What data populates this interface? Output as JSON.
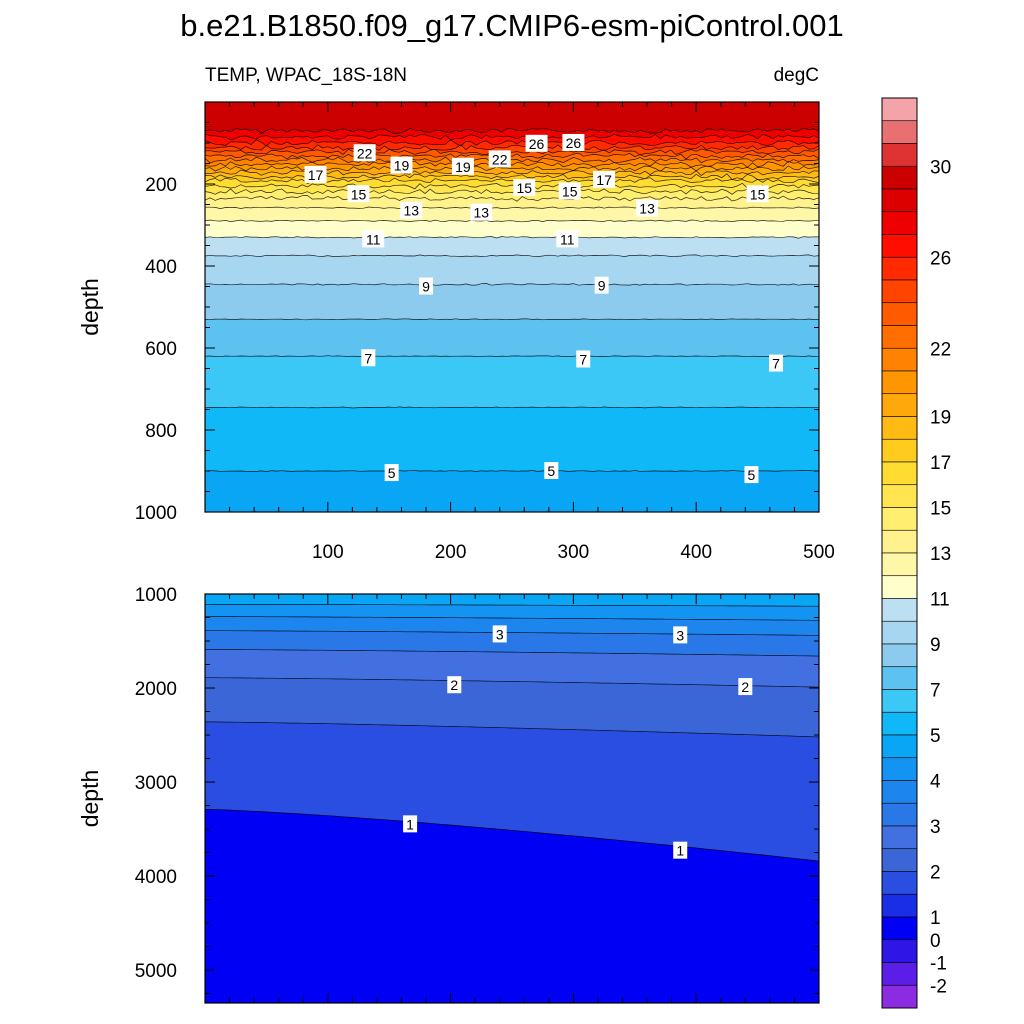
{
  "title": "b.e21.B1850.f09_g17.CMIP6-esm-piControl.001",
  "left_string": "TEMP, WPAC_18S-18N",
  "right_string": "degC",
  "colorbar": {
    "levels": [
      -2,
      -1,
      0,
      1,
      1.5,
      2,
      2.5,
      3,
      3.5,
      4,
      4.5,
      5,
      6,
      7,
      8,
      9,
      10,
      11,
      12,
      13,
      14,
      15,
      16,
      17,
      18,
      19,
      20,
      21,
      22,
      23,
      24,
      25,
      26,
      27,
      28,
      29,
      30,
      31
    ],
    "colors": [
      "#8b2be2",
      "#5a1ee8",
      "#2e16e6",
      "#0000f5",
      "#1a2ee6",
      "#2a4ee2",
      "#3a66d8",
      "#4270e0",
      "#2a78e8",
      "#1c86ee",
      "#1494f2",
      "#08a6f4",
      "#10b8f8",
      "#3cc8f6",
      "#5ec2f0",
      "#8ccbee",
      "#a6d6f0",
      "#bce0f2",
      "#ffffcc",
      "#fff7a8",
      "#fff28c",
      "#ffee70",
      "#ffe650",
      "#ffdc32",
      "#ffcc1e",
      "#ffbb14",
      "#ffa80c",
      "#ff9600",
      "#ff8200",
      "#ff6e00",
      "#ff5a00",
      "#ff4400",
      "#ff2a00",
      "#ff0e00",
      "#ee0000",
      "#dd0000",
      "#cc0000",
      "#dd3333",
      "#e87070",
      "#f4a4a8"
    ],
    "tick_labels": [
      "-2",
      "-1",
      "0",
      "1",
      "2",
      "3",
      "4",
      "5",
      "7",
      "9",
      "11",
      "13",
      "15",
      "17",
      "19",
      "22",
      "26",
      "30"
    ]
  },
  "chart_data": [
    {
      "type": "contour",
      "panel": "upper",
      "x_range": [
        0,
        500
      ],
      "y_range": [
        0,
        1000
      ],
      "y_reversed": true,
      "xticks": [
        100,
        200,
        300,
        400,
        500
      ],
      "yticks": [
        200,
        400,
        600,
        800,
        1000
      ],
      "ylabel": "depth",
      "isotherms": [
        {
          "temp": 28,
          "depth": 70
        },
        {
          "temp": 27,
          "depth": 85
        },
        {
          "temp": 26,
          "depth": 100
        },
        {
          "temp": 25,
          "depth": 112
        },
        {
          "temp": 24,
          "depth": 122
        },
        {
          "temp": 23,
          "depth": 132
        },
        {
          "temp": 22,
          "depth": 142
        },
        {
          "temp": 21,
          "depth": 152
        },
        {
          "temp": 20,
          "depth": 162
        },
        {
          "temp": 19,
          "depth": 172
        },
        {
          "temp": 18,
          "depth": 182
        },
        {
          "temp": 17,
          "depth": 192
        },
        {
          "temp": 16,
          "depth": 205
        },
        {
          "temp": 15,
          "depth": 218
        },
        {
          "temp": 14,
          "depth": 235
        },
        {
          "temp": 13,
          "depth": 258
        },
        {
          "temp": 12,
          "depth": 290
        },
        {
          "temp": 11,
          "depth": 330
        },
        {
          "temp": 10,
          "depth": 375
        },
        {
          "temp": 9,
          "depth": 445
        },
        {
          "temp": 8,
          "depth": 530
        },
        {
          "temp": 7,
          "depth": 620
        },
        {
          "temp": 6,
          "depth": 745
        },
        {
          "temp": 5,
          "depth": 900
        }
      ],
      "labels": [
        {
          "text": "22",
          "x": 130,
          "depth": 125
        },
        {
          "text": "19",
          "x": 160,
          "depth": 155
        },
        {
          "text": "17",
          "x": 90,
          "depth": 178
        },
        {
          "text": "19",
          "x": 210,
          "depth": 158
        },
        {
          "text": "22",
          "x": 240,
          "depth": 140
        },
        {
          "text": "26",
          "x": 270,
          "depth": 102
        },
        {
          "text": "26",
          "x": 300,
          "depth": 100
        },
        {
          "text": "17",
          "x": 325,
          "depth": 190
        },
        {
          "text": "15",
          "x": 125,
          "depth": 225
        },
        {
          "text": "15",
          "x": 260,
          "depth": 210
        },
        {
          "text": "15",
          "x": 297,
          "depth": 218
        },
        {
          "text": "15",
          "x": 450,
          "depth": 225
        },
        {
          "text": "13",
          "x": 168,
          "depth": 265
        },
        {
          "text": "13",
          "x": 225,
          "depth": 270
        },
        {
          "text": "13",
          "x": 360,
          "depth": 260
        },
        {
          "text": "11",
          "x": 137,
          "depth": 335
        },
        {
          "text": "11",
          "x": 295,
          "depth": 335
        },
        {
          "text": "9",
          "x": 180,
          "depth": 450
        },
        {
          "text": "9",
          "x": 323,
          "depth": 448
        },
        {
          "text": "7",
          "x": 133,
          "depth": 625
        },
        {
          "text": "7",
          "x": 308,
          "depth": 628
        },
        {
          "text": "7",
          "x": 465,
          "depth": 638
        },
        {
          "text": "5",
          "x": 152,
          "depth": 905
        },
        {
          "text": "5",
          "x": 282,
          "depth": 900
        },
        {
          "text": "5",
          "x": 445,
          "depth": 910
        }
      ]
    },
    {
      "type": "contour",
      "panel": "lower",
      "x_range": [
        0,
        500
      ],
      "y_range": [
        1000,
        5350
      ],
      "y_reversed": true,
      "xticks": [
        100,
        200,
        300,
        400,
        500
      ],
      "yticks": [
        1000,
        2000,
        3000,
        4000,
        5000
      ],
      "ylabel": "depth",
      "isotherms": [
        {
          "temp": 4.5,
          "depth_left": 1110,
          "depth_right": 1130
        },
        {
          "temp": 4,
          "depth_left": 1240,
          "depth_right": 1280
        },
        {
          "temp": 3.5,
          "depth_left": 1390,
          "depth_right": 1440
        },
        {
          "temp": 3,
          "depth_left": 1590,
          "depth_right": 1660
        },
        {
          "temp": 2.5,
          "depth_left": 1890,
          "depth_right": 1990
        },
        {
          "temp": 2,
          "depth_left": 2360,
          "depth_right": 2520
        },
        {
          "temp": 1,
          "depth_left": 3290,
          "depth_right": 3840
        }
      ],
      "labels": [
        {
          "text": "3",
          "x": 240,
          "depth": 1430
        },
        {
          "text": "3",
          "x": 387,
          "depth": 1440
        },
        {
          "text": "2",
          "x": 203,
          "depth": 1970
        },
        {
          "text": "2",
          "x": 440,
          "depth": 1990
        },
        {
          "text": "1",
          "x": 167,
          "depth": 3450
        },
        {
          "text": "1",
          "x": 387,
          "depth": 3730
        }
      ]
    }
  ]
}
